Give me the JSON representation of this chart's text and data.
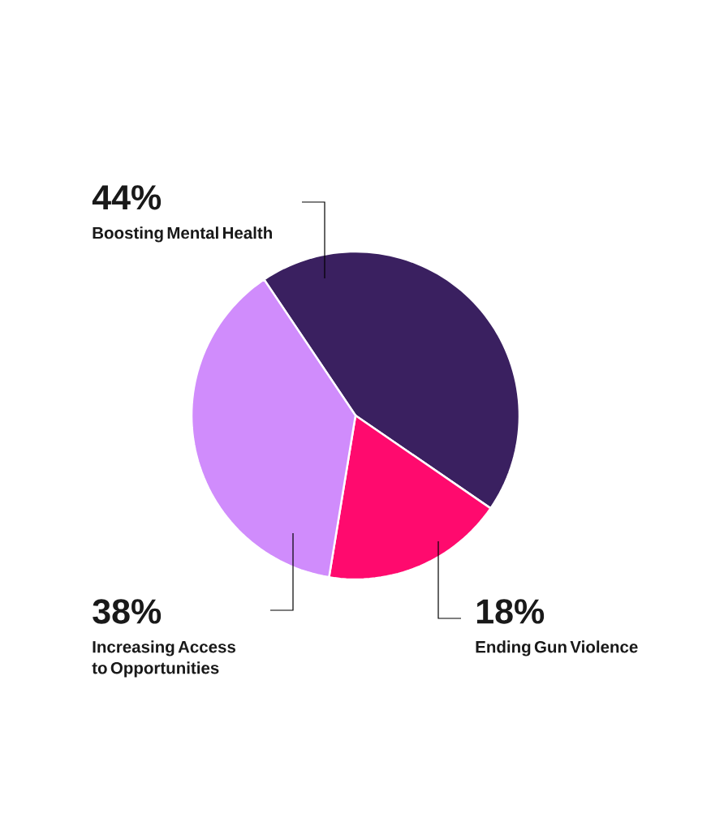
{
  "chart_data": {
    "type": "pie",
    "categories": [
      "Boosting Mental Health",
      "Ending Gun Violence",
      "Increasing Access to Opportunities"
    ],
    "values": [
      44,
      18,
      38
    ],
    "colors": [
      "#3a2060",
      "#ff0a6e",
      "#d08cfc"
    ],
    "value_labels": [
      "44%",
      "18%",
      "38%"
    ]
  }
}
